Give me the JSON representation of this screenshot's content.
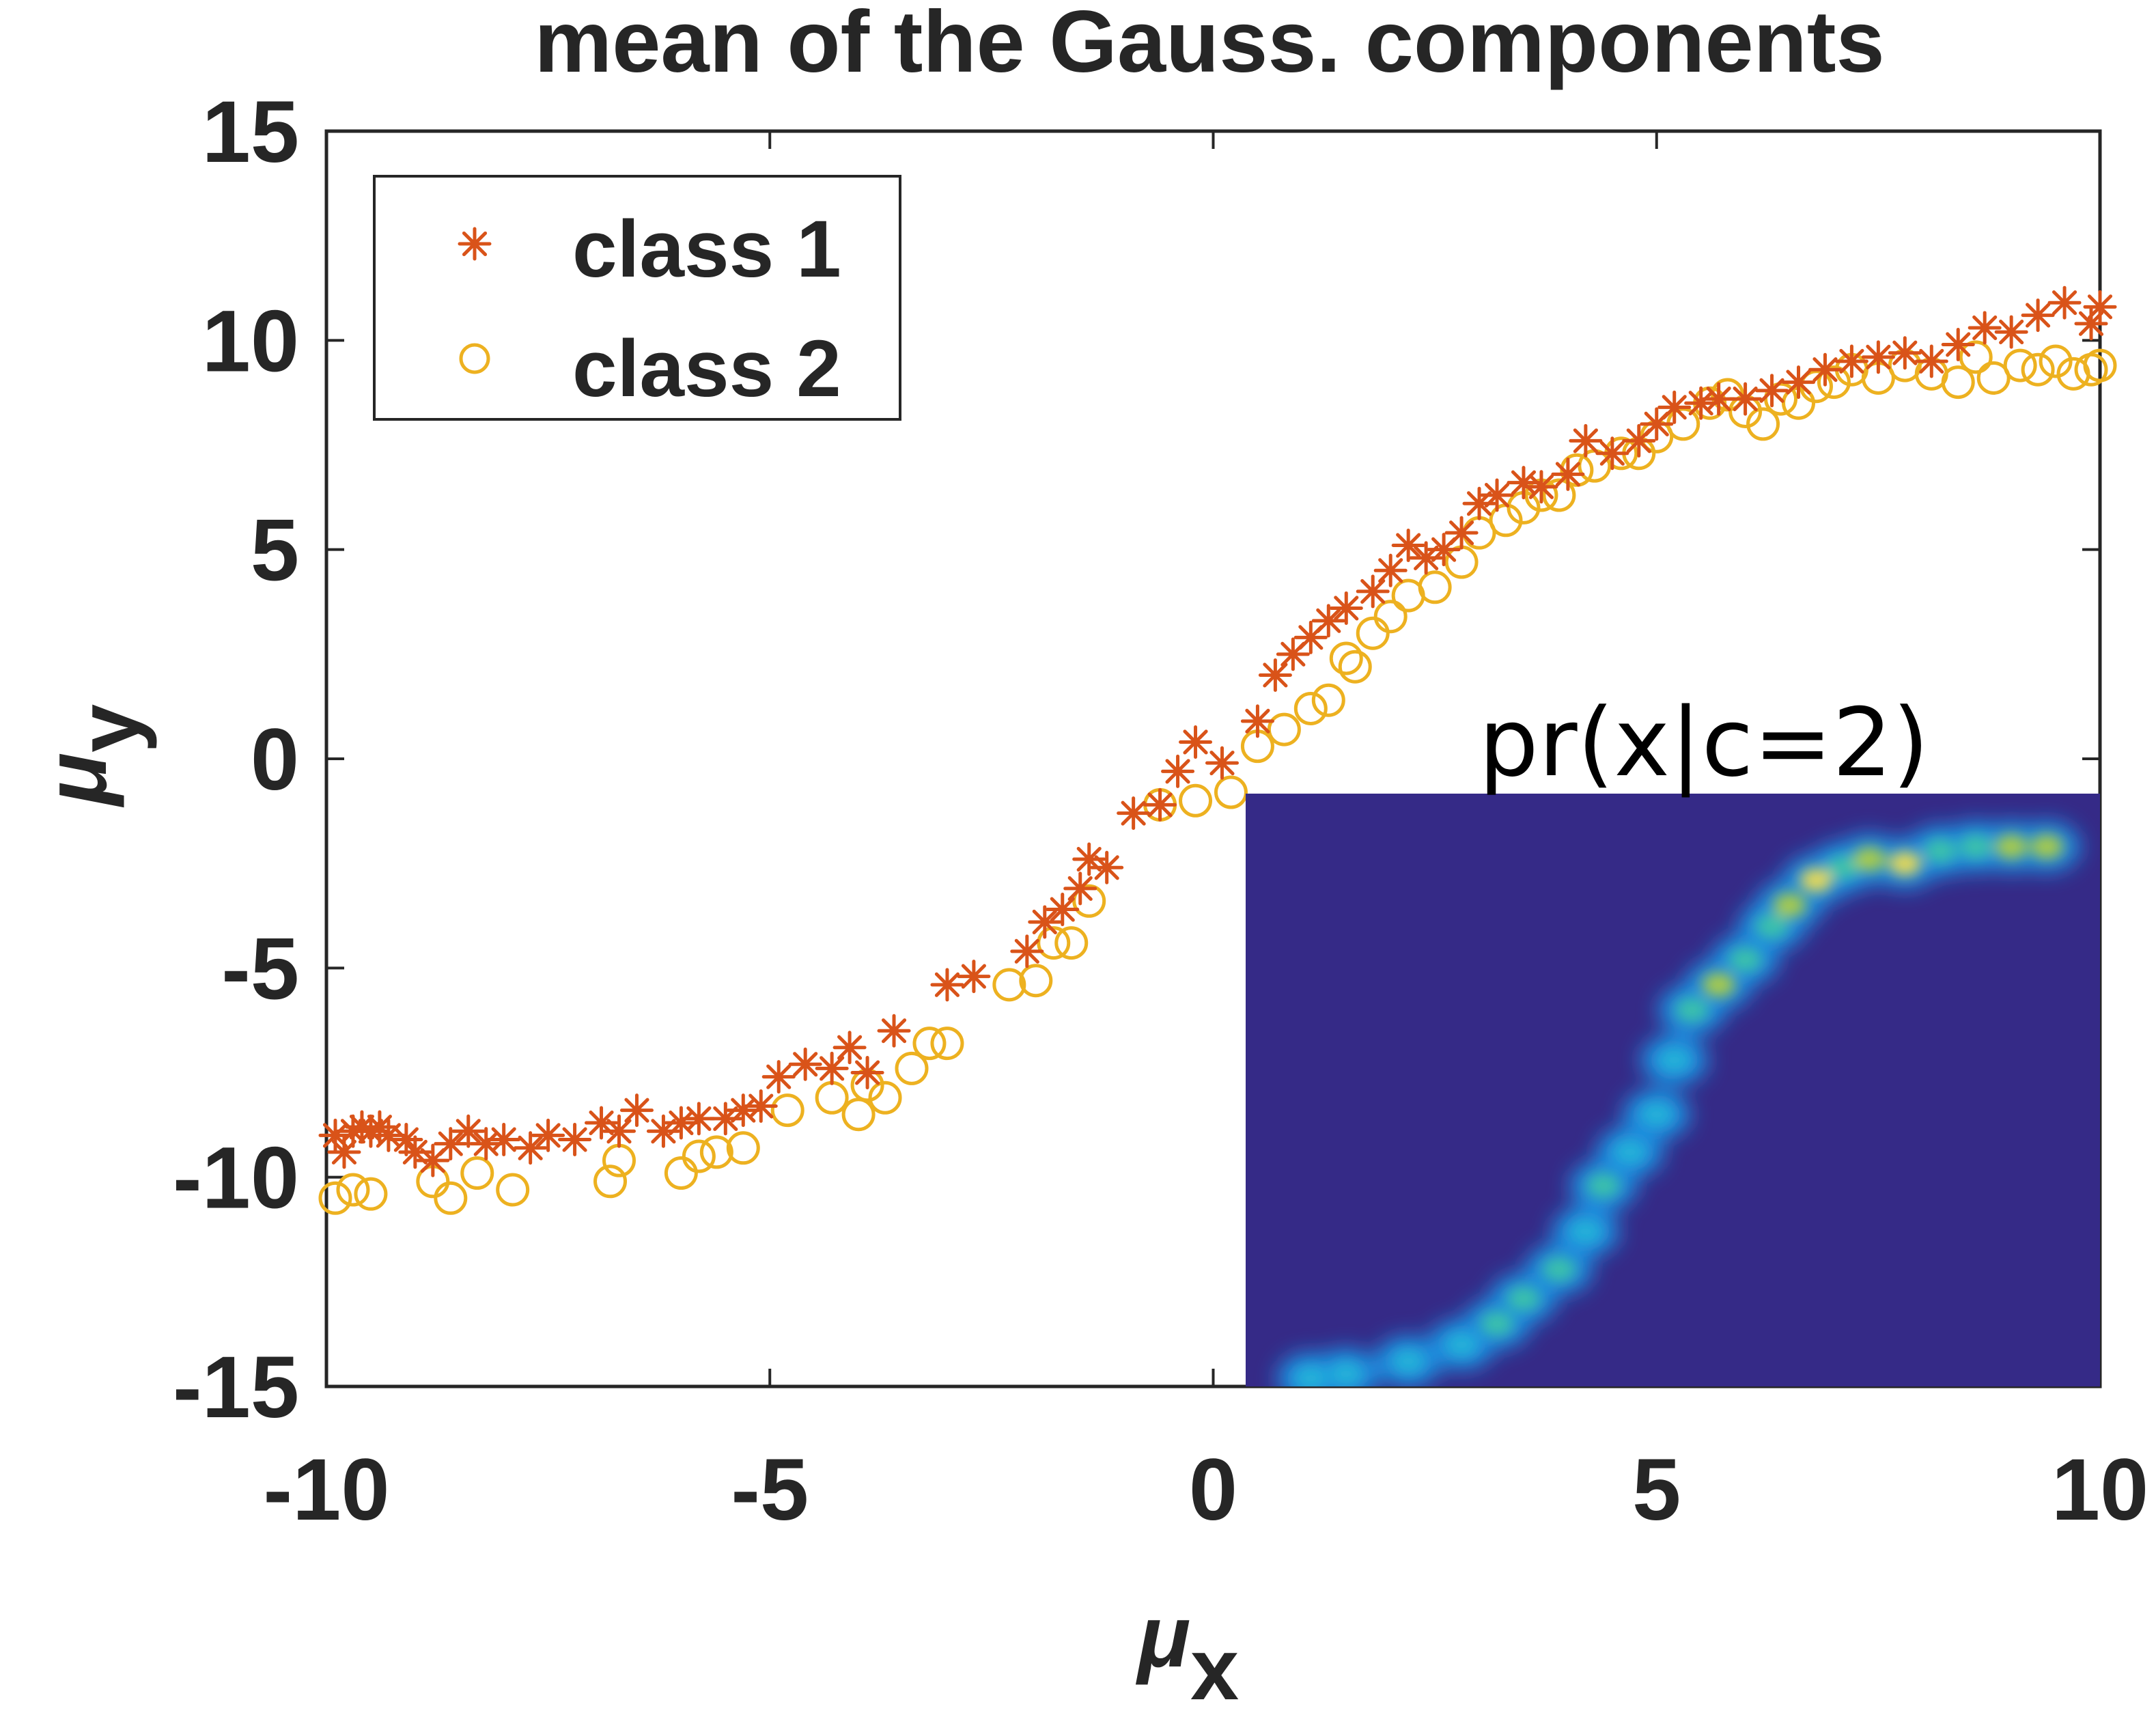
{
  "colors": {
    "class1": "#D95319",
    "class2": "#EDB120",
    "axis": "#262626",
    "inset_background": "#352A87"
  },
  "chart_data": {
    "type": "scatter",
    "title": "mean of the Gauss. components",
    "xlabel_base": "μ",
    "xlabel_sub": "x",
    "ylabel_base": "μ",
    "ylabel_sub": "y",
    "xlim": [
      -10,
      10
    ],
    "ylim": [
      -15,
      15
    ],
    "x_ticks": [
      -10,
      -5,
      0,
      5,
      10
    ],
    "y_ticks": [
      -15,
      -10,
      -5,
      0,
      5,
      10,
      15
    ],
    "grid": false,
    "legend_position": "top-left",
    "series": [
      {
        "name": "class 1",
        "marker": "asterisk",
        "points": [
          [
            -9.9,
            -9.0
          ],
          [
            -9.8,
            -9.4
          ],
          [
            -9.7,
            -8.9
          ],
          [
            -9.6,
            -8.8
          ],
          [
            -9.5,
            -8.9
          ],
          [
            -9.4,
            -8.8
          ],
          [
            -9.3,
            -9.0
          ],
          [
            -9.1,
            -9.1
          ],
          [
            -9.0,
            -9.4
          ],
          [
            -8.8,
            -9.6
          ],
          [
            -8.6,
            -9.2
          ],
          [
            -8.4,
            -8.9
          ],
          [
            -8.2,
            -9.2
          ],
          [
            -8.0,
            -9.1
          ],
          [
            -7.7,
            -9.3
          ],
          [
            -7.5,
            -9.0
          ],
          [
            -7.2,
            -9.1
          ],
          [
            -6.9,
            -8.7
          ],
          [
            -6.7,
            -8.9
          ],
          [
            -6.5,
            -8.4
          ],
          [
            -6.2,
            -8.9
          ],
          [
            -6.0,
            -8.7
          ],
          [
            -5.8,
            -8.6
          ],
          [
            -5.5,
            -8.6
          ],
          [
            -5.3,
            -8.4
          ],
          [
            -5.1,
            -8.3
          ],
          [
            -4.9,
            -7.6
          ],
          [
            -4.6,
            -7.3
          ],
          [
            -4.3,
            -7.4
          ],
          [
            -4.1,
            -6.9
          ],
          [
            -3.9,
            -7.5
          ],
          [
            -3.6,
            -6.5
          ],
          [
            -3.0,
            -5.4
          ],
          [
            -2.7,
            -5.2
          ],
          [
            -2.1,
            -4.6
          ],
          [
            -1.9,
            -3.9
          ],
          [
            -1.7,
            -3.6
          ],
          [
            -1.5,
            -3.1
          ],
          [
            -1.4,
            -2.4
          ],
          [
            -1.2,
            -2.6
          ],
          [
            -0.9,
            -1.3
          ],
          [
            -0.6,
            -1.1
          ],
          [
            -0.4,
            -0.3
          ],
          [
            -0.2,
            0.4
          ],
          [
            0.1,
            -0.1
          ],
          [
            0.5,
            0.9
          ],
          [
            0.7,
            2.0
          ],
          [
            0.9,
            2.5
          ],
          [
            1.1,
            2.9
          ],
          [
            1.3,
            3.3
          ],
          [
            1.5,
            3.6
          ],
          [
            1.8,
            4.0
          ],
          [
            2.0,
            4.5
          ],
          [
            2.2,
            5.1
          ],
          [
            2.4,
            4.8
          ],
          [
            2.6,
            5.0
          ],
          [
            2.8,
            5.4
          ],
          [
            3.0,
            6.1
          ],
          [
            3.2,
            6.3
          ],
          [
            3.5,
            6.6
          ],
          [
            3.7,
            6.5
          ],
          [
            4.0,
            6.8
          ],
          [
            4.2,
            7.6
          ],
          [
            4.5,
            7.3
          ],
          [
            4.8,
            7.6
          ],
          [
            5.0,
            8.0
          ],
          [
            5.2,
            8.4
          ],
          [
            5.5,
            8.5
          ],
          [
            5.7,
            8.6
          ],
          [
            6.0,
            8.6
          ],
          [
            6.3,
            8.8
          ],
          [
            6.6,
            9.0
          ],
          [
            6.9,
            9.3
          ],
          [
            7.2,
            9.5
          ],
          [
            7.5,
            9.6
          ],
          [
            7.8,
            9.7
          ],
          [
            8.1,
            9.5
          ],
          [
            8.4,
            9.9
          ],
          [
            8.7,
            10.3
          ],
          [
            9.0,
            10.2
          ],
          [
            9.3,
            10.6
          ],
          [
            9.6,
            10.9
          ],
          [
            9.9,
            10.4
          ],
          [
            10.0,
            10.8
          ]
        ]
      },
      {
        "name": "class 2",
        "marker": "circle",
        "points": [
          [
            -9.9,
            -10.5
          ],
          [
            -9.7,
            -10.3
          ],
          [
            -9.5,
            -10.4
          ],
          [
            -8.8,
            -10.1
          ],
          [
            -8.6,
            -10.5
          ],
          [
            -8.3,
            -9.9
          ],
          [
            -7.9,
            -10.3
          ],
          [
            -6.8,
            -10.1
          ],
          [
            -6.7,
            -9.6
          ],
          [
            -6.0,
            -9.9
          ],
          [
            -5.8,
            -9.5
          ],
          [
            -5.6,
            -9.4
          ],
          [
            -5.3,
            -9.3
          ],
          [
            -4.8,
            -8.4
          ],
          [
            -4.3,
            -8.1
          ],
          [
            -4.0,
            -8.5
          ],
          [
            -3.9,
            -7.8
          ],
          [
            -3.7,
            -8.1
          ],
          [
            -3.4,
            -7.4
          ],
          [
            -3.2,
            -6.8
          ],
          [
            -3.0,
            -6.8
          ],
          [
            -2.3,
            -5.4
          ],
          [
            -2.0,
            -5.3
          ],
          [
            -1.8,
            -4.4
          ],
          [
            -1.6,
            -4.4
          ],
          [
            -1.4,
            -3.4
          ],
          [
            -0.6,
            -1.1
          ],
          [
            -0.2,
            -1.0
          ],
          [
            0.2,
            -0.8
          ],
          [
            0.5,
            0.3
          ],
          [
            0.8,
            0.7
          ],
          [
            1.1,
            1.2
          ],
          [
            1.3,
            1.4
          ],
          [
            1.5,
            2.4
          ],
          [
            1.6,
            2.2
          ],
          [
            1.8,
            3.0
          ],
          [
            2.0,
            3.4
          ],
          [
            2.2,
            3.9
          ],
          [
            2.5,
            4.1
          ],
          [
            2.8,
            4.7
          ],
          [
            3.0,
            5.4
          ],
          [
            3.3,
            5.7
          ],
          [
            3.5,
            6.0
          ],
          [
            3.7,
            6.3
          ],
          [
            3.9,
            6.3
          ],
          [
            4.1,
            6.9
          ],
          [
            4.3,
            7.0
          ],
          [
            4.6,
            7.3
          ],
          [
            4.8,
            7.3
          ],
          [
            5.0,
            7.7
          ],
          [
            5.3,
            8.0
          ],
          [
            5.6,
            8.5
          ],
          [
            5.8,
            8.7
          ],
          [
            6.0,
            8.3
          ],
          [
            6.2,
            8.0
          ],
          [
            6.4,
            8.6
          ],
          [
            6.6,
            8.5
          ],
          [
            6.8,
            8.9
          ],
          [
            7.0,
            9.0
          ],
          [
            7.2,
            9.3
          ],
          [
            7.5,
            9.1
          ],
          [
            7.8,
            9.4
          ],
          [
            8.1,
            9.2
          ],
          [
            8.4,
            9.0
          ],
          [
            8.6,
            9.6
          ],
          [
            8.8,
            9.1
          ],
          [
            9.1,
            9.4
          ],
          [
            9.3,
            9.3
          ],
          [
            9.5,
            9.5
          ],
          [
            9.7,
            9.2
          ],
          [
            9.9,
            9.3
          ],
          [
            10.0,
            9.4
          ]
        ]
      }
    ],
    "inset": {
      "title": "pr(x|c=2)",
      "type": "heatmap",
      "description_free": true,
      "blobs": [
        [
          1.1,
          -14.8,
          0.5
        ],
        [
          1.5,
          -14.7,
          0.5
        ],
        [
          2.2,
          -14.4,
          0.6
        ],
        [
          2.8,
          -14.0,
          0.7
        ],
        [
          3.2,
          -13.5,
          0.75
        ],
        [
          3.5,
          -12.9,
          0.8
        ],
        [
          3.9,
          -12.2,
          0.75
        ],
        [
          4.2,
          -11.3,
          0.7
        ],
        [
          4.4,
          -10.2,
          0.75
        ],
        [
          4.7,
          -9.4,
          0.7
        ],
        [
          5.0,
          -8.5,
          0.65
        ],
        [
          5.2,
          -7.2,
          0.7
        ],
        [
          5.4,
          -6.0,
          0.8
        ],
        [
          5.7,
          -5.4,
          0.85
        ],
        [
          6.0,
          -4.8,
          0.75
        ],
        [
          6.3,
          -4.0,
          0.8
        ],
        [
          6.5,
          -3.5,
          0.85
        ],
        [
          6.8,
          -2.9,
          0.95
        ],
        [
          7.1,
          -2.6,
          0.8
        ],
        [
          7.4,
          -2.4,
          0.9
        ],
        [
          7.8,
          -2.5,
          1.0
        ],
        [
          8.2,
          -2.2,
          0.8
        ],
        [
          8.6,
          -2.1,
          0.75
        ],
        [
          9.0,
          -2.1,
          0.9
        ],
        [
          9.4,
          -2.1,
          0.85
        ]
      ]
    }
  }
}
